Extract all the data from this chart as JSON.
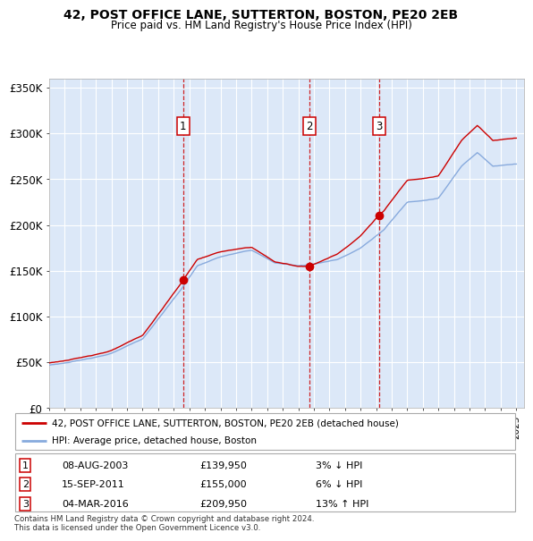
{
  "title1": "42, POST OFFICE LANE, SUTTERTON, BOSTON, PE20 2EB",
  "title2": "Price paid vs. HM Land Registry's House Price Index (HPI)",
  "bg_color": "#dce8f8",
  "grid_color": "#ffffff",
  "line1_color": "#cc0000",
  "line2_color": "#88aadd",
  "sales": [
    {
      "date": 2003.6,
      "price": 139950,
      "label": "1"
    },
    {
      "date": 2011.72,
      "price": 155000,
      "label": "2"
    },
    {
      "date": 2016.17,
      "price": 209950,
      "label": "3"
    }
  ],
  "sale_labels": [
    {
      "num": "1",
      "date_str": "08-AUG-2003",
      "price_str": "£139,950",
      "change": "3%",
      "dir": "↓",
      "rel": "HPI"
    },
    {
      "num": "2",
      "date_str": "15-SEP-2011",
      "price_str": "£155,000",
      "change": "6%",
      "dir": "↓",
      "rel": "HPI"
    },
    {
      "num": "3",
      "date_str": "04-MAR-2016",
      "price_str": "£209,950",
      "change": "13%",
      "dir": "↑",
      "rel": "HPI"
    }
  ],
  "xmin": 1995.0,
  "xmax": 2025.5,
  "ymin": 0,
  "ymax": 360000,
  "yticks": [
    0,
    50000,
    100000,
    150000,
    200000,
    250000,
    300000,
    350000
  ],
  "ytick_labels": [
    "£0",
    "£50K",
    "£100K",
    "£150K",
    "£200K",
    "£250K",
    "£300K",
    "£350K"
  ],
  "footer": "Contains HM Land Registry data © Crown copyright and database right 2024.\nThis data is licensed under the Open Government Licence v3.0.",
  "legend1": "42, POST OFFICE LANE, SUTTERTON, BOSTON, PE20 2EB (detached house)",
  "legend2": "HPI: Average price, detached house, Boston"
}
